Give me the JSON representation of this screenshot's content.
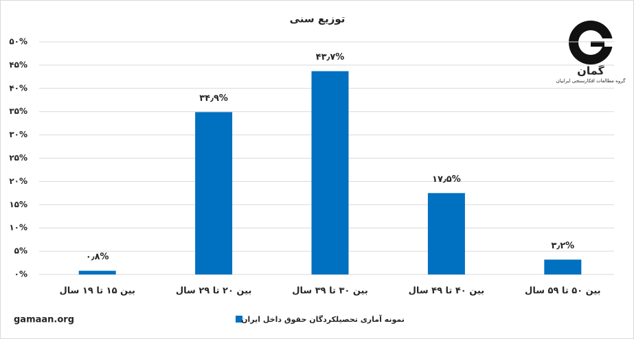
{
  "chart_data": {
    "type": "bar",
    "title": "توزیع سنی",
    "categories": [
      "بین ۱۵ تا ۱۹ سال",
      "بین ۲۰ تا ۲۹ سال",
      "بین ۳۰ تا ۳۹ سال",
      "بین ۴۰ تا ۴۹ سال",
      "بین ۵۰ تا ۵۹ سال"
    ],
    "series": [
      {
        "name": "نمونه آماری تحصیلکردگان حقوق داخل ایران",
        "color": "#0070c0",
        "values": [
          0.8,
          34.9,
          43.7,
          17.5,
          3.2
        ],
        "value_labels": [
          "۰٫۸%",
          "۳۴٫۹%",
          "۴۳٫۷%",
          "۱۷٫۵%",
          "۳٫۲%"
        ]
      }
    ],
    "ylim": [
      0,
      50
    ],
    "yticks": [
      {
        "value": 0,
        "label": "۰%"
      },
      {
        "value": 5,
        "label": "۵%"
      },
      {
        "value": 10,
        "label": "۱۰%"
      },
      {
        "value": 15,
        "label": "۱۵%"
      },
      {
        "value": 20,
        "label": "۲۰%"
      },
      {
        "value": 25,
        "label": "۲۵%"
      },
      {
        "value": 30,
        "label": "۳۰%"
      },
      {
        "value": 35,
        "label": "۳۵%"
      },
      {
        "value": 40,
        "label": "۴۰%"
      },
      {
        "value": 45,
        "label": "۴۵%"
      },
      {
        "value": 50,
        "label": "۵۰%"
      }
    ],
    "grid": true,
    "legend": "bottom"
  },
  "logo": {
    "name": "گمان",
    "subtitle": "گروه مطالعات افکارسنجی ایرانیان"
  },
  "footer": "gamaan.org"
}
